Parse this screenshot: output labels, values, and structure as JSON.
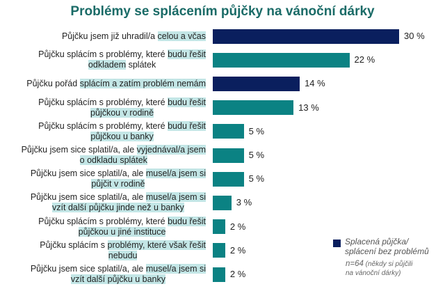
{
  "chart_data": {
    "type": "bar",
    "orientation": "horizontal",
    "title": "Problémy se splácením půjčky na vánoční dárky",
    "unit": "%",
    "xlim": [
      0,
      30
    ],
    "grid": false,
    "legend_placement": "bottom-right",
    "categories": [
      [
        [
          {
            "t": "Půjčku jsem již uhradil/a ",
            "h": false
          },
          {
            "t": "celou a včas",
            "h": true
          }
        ]
      ],
      [
        [
          {
            "t": "Půjčku splácím s problémy, které ",
            "h": false
          },
          {
            "t": "budu řešit",
            "h": true
          }
        ],
        [
          {
            "t": "odkladem",
            "h": true
          },
          {
            "t": " splátek",
            "h": false
          }
        ]
      ],
      [
        [
          {
            "t": "Půjčku pořád ",
            "h": false
          },
          {
            "t": "splácím a zatím problém nemám",
            "h": true
          }
        ]
      ],
      [
        [
          {
            "t": "Půjčku splácím s problémy, které ",
            "h": false
          },
          {
            "t": "budu řešit",
            "h": true
          }
        ],
        [
          {
            "t": " půjčkou v rodině",
            "h": true
          }
        ]
      ],
      [
        [
          {
            "t": "Půjčku splácím s problémy, které ",
            "h": false
          },
          {
            "t": "budu řešit",
            "h": true
          }
        ],
        [
          {
            "t": "půjčkou u banky ",
            "h": true
          }
        ]
      ],
      [
        [
          {
            "t": "Půjčku jsem sice splatil/a, ale ",
            "h": false
          },
          {
            "t": "vyjednával/a jsem",
            "h": true
          }
        ],
        [
          {
            "t": "o odkladu splátek",
            "h": true
          }
        ]
      ],
      [
        [
          {
            "t": "Půjčku jsem sice splatil/a, ale ",
            "h": false
          },
          {
            "t": "musel/a jsem si",
            "h": true
          }
        ],
        [
          {
            "t": "půjčit v rodině ",
            "h": true
          }
        ]
      ],
      [
        [
          {
            "t": "Půjčku jsem sice splatil/a, ale ",
            "h": false
          },
          {
            "t": "musel/a jsem si",
            "h": true
          }
        ],
        [
          {
            "t": "vzít další půjčku jinde než u banky ",
            "h": true
          }
        ]
      ],
      [
        [
          {
            "t": "Půjčku splácím s problémy, které ",
            "h": false
          },
          {
            "t": "budu řešit",
            "h": true
          }
        ],
        [
          {
            "t": "půjčkou u jiné instituce",
            "h": true
          }
        ]
      ],
      [
        [
          {
            "t": "Půjčku splácím s ",
            "h": false
          },
          {
            "t": "problémy, které však řešit",
            "h": true
          }
        ],
        [
          {
            "t": "nebudu",
            "h": true
          }
        ]
      ],
      [
        [
          {
            "t": "Půjčku jsem sice splatil/a, ale ",
            "h": false
          },
          {
            "t": "musel/a jsem si",
            "h": true
          }
        ],
        [
          {
            "t": "vzít další půjčku u banky",
            "h": true
          }
        ]
      ]
    ],
    "values": [
      30,
      22,
      14,
      13,
      5,
      5,
      5,
      3,
      2,
      2,
      2
    ],
    "value_labels": [
      "30 %",
      "22 %",
      "14 %",
      "13 %",
      "5 %",
      "5 %",
      "5 %",
      "3 %",
      "2 %",
      "2 %",
      "2 %"
    ],
    "highlighted": [
      true,
      false,
      true,
      false,
      false,
      false,
      false,
      false,
      false,
      false,
      false
    ],
    "colors": {
      "highlight": "#0a1f5e",
      "default": "#0b8283",
      "label_highlight": "#c3e6e6",
      "title": "#1a6b67"
    },
    "legend": {
      "label_line1": "Splacená půjčka/",
      "label_line2": "splácení bez problémů",
      "color": "#0a1f5e"
    },
    "note": {
      "n": "n=64",
      "text_line1": " (někdy si půjčili",
      "text_line2": "na vánoční dárky)"
    }
  }
}
